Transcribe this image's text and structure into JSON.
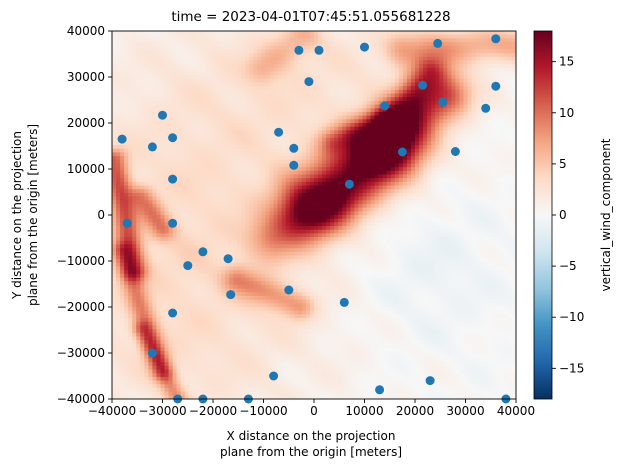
{
  "chart_data": {
    "type": "heatmap",
    "title": "time = 2023-04-01T07:45:51.055681228",
    "xlabel_line1": "X distance on the projection",
    "xlabel_line2": "plane from the origin [meters]",
    "ylabel_line1": "Y distance on the projection",
    "ylabel_line2": "plane from the origin [meters]",
    "xlim": [
      -40000,
      40000
    ],
    "ylim": [
      -40000,
      40000
    ],
    "xticks": [
      -40000,
      -30000,
      -20000,
      -10000,
      0,
      10000,
      20000,
      30000,
      40000
    ],
    "yticks": [
      -40000,
      -30000,
      -20000,
      -10000,
      0,
      10000,
      20000,
      30000,
      40000
    ],
    "colorbar": {
      "label": "vertical_wind_component",
      "range": [
        -18,
        18
      ],
      "ticks": [
        -15,
        -10,
        -5,
        0,
        5,
        10,
        15
      ],
      "colormap": "RdBu_r",
      "stops": [
        "#053061",
        "#2166ac",
        "#4393c3",
        "#92c5de",
        "#d1e5f0",
        "#f7f7f7",
        "#fddbc7",
        "#f4a582",
        "#d6604d",
        "#b2182b",
        "#67001f"
      ]
    },
    "points_color": "#1f77b4",
    "points": [
      [
        -38000,
        16500
      ],
      [
        -37000,
        -1800
      ],
      [
        -32000,
        14800
      ],
      [
        -30000,
        21700
      ],
      [
        -28000,
        16800
      ],
      [
        -28000,
        7800
      ],
      [
        -28000,
        -1800
      ],
      [
        -28000,
        -21300
      ],
      [
        -32000,
        -30000
      ],
      [
        -27000,
        -40000
      ],
      [
        -25000,
        -11000
      ],
      [
        -22000,
        -8000
      ],
      [
        -22000,
        -40000
      ],
      [
        -17000,
        -9500
      ],
      [
        -16500,
        -17300
      ],
      [
        -13000,
        -40000
      ],
      [
        -8000,
        -35000
      ],
      [
        -7000,
        18000
      ],
      [
        -4000,
        14500
      ],
      [
        -4000,
        10800
      ],
      [
        -3000,
        35800
      ],
      [
        -5000,
        -16300
      ],
      [
        -1000,
        29000
      ],
      [
        1000,
        35800
      ],
      [
        6000,
        -19000
      ],
      [
        7000,
        6700
      ],
      [
        10000,
        36500
      ],
      [
        13000,
        -38000
      ],
      [
        14000,
        23700
      ],
      [
        17500,
        13700
      ],
      [
        21500,
        28200
      ],
      [
        23000,
        -36000
      ],
      [
        24500,
        37300
      ],
      [
        25500,
        24500
      ],
      [
        28000,
        13800
      ],
      [
        34000,
        23200
      ],
      [
        36000,
        28000
      ],
      [
        36000,
        38300
      ],
      [
        38000,
        -40000
      ]
    ],
    "features": [
      {
        "x0": 0,
        "y0": 2000,
        "x1": 15000,
        "y1": 14000,
        "width": 7000,
        "peak": 15
      },
      {
        "x0": -8000,
        "y0": -5000,
        "x1": 3000,
        "y1": 3000,
        "width": 5000,
        "peak": 6
      },
      {
        "x0": 12000,
        "y0": 14000,
        "x1": 26000,
        "y1": 26000,
        "width": 5000,
        "peak": 11
      },
      {
        "x0": 16000,
        "y0": 21000,
        "x1": 23000,
        "y1": 31000,
        "width": 3500,
        "peak": 9
      },
      {
        "x0": -39500,
        "y0": 12000,
        "x1": -35500,
        "y1": -12000,
        "width": 2500,
        "peak": 9
      },
      {
        "x0": -38000,
        "y0": -8000,
        "x1": -30000,
        "y1": -34000,
        "width": 2200,
        "peak": 6
      },
      {
        "x0": -34000,
        "y0": -25000,
        "x1": -27000,
        "y1": -40000,
        "width": 2000,
        "peak": 6
      },
      {
        "x0": -15000,
        "y0": -14000,
        "x1": -3000,
        "y1": -20000,
        "width": 3000,
        "peak": 6
      },
      {
        "x0": 18000,
        "y0": 36000,
        "x1": 40000,
        "y1": 37000,
        "width": 4000,
        "peak": 6
      },
      {
        "x0": -34000,
        "y0": 4000,
        "x1": -30000,
        "y1": -3000,
        "width": 2500,
        "peak": 6
      },
      {
        "x0": 4000,
        "y0": 16000,
        "x1": 13000,
        "y1": 20000,
        "width": 3000,
        "peak": 6
      },
      {
        "x0": -10000,
        "y0": 32000,
        "x1": -2000,
        "y1": 39000,
        "width": 3500,
        "peak": 4
      }
    ],
    "background_warm": 3.5
  }
}
